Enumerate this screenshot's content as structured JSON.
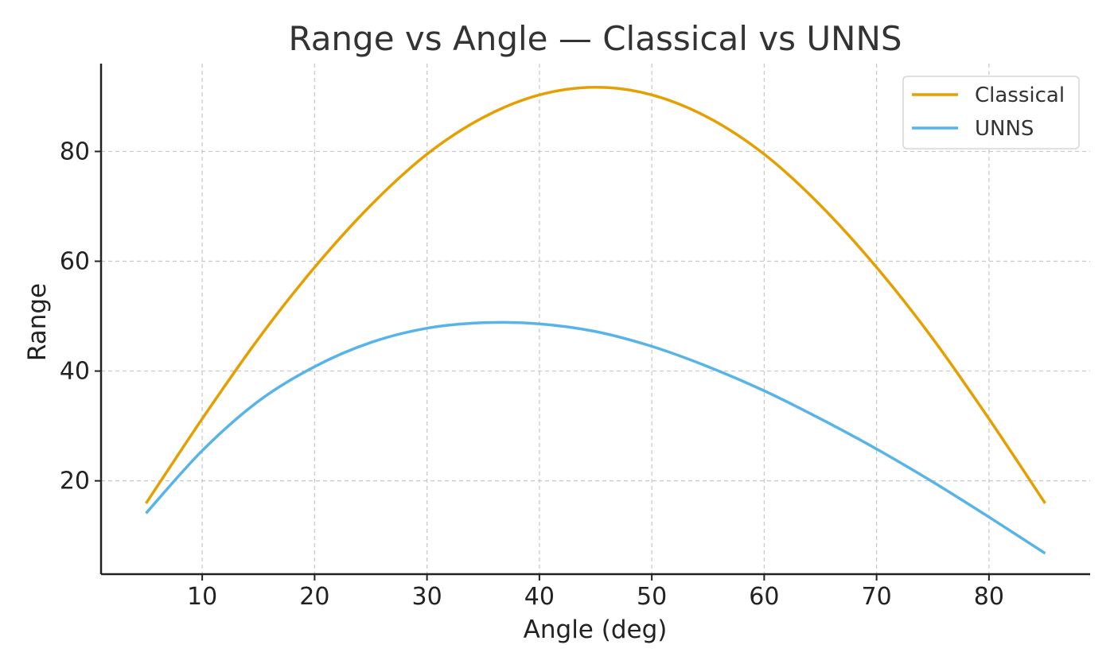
{
  "chart_data": {
    "type": "line",
    "title": "Range vs Angle — Classical vs UNNS",
    "xlabel": "Angle (deg)",
    "ylabel": "Range",
    "xlim": [
      1,
      89
    ],
    "ylim": [
      3,
      96
    ],
    "xticks": [
      10,
      20,
      30,
      40,
      50,
      60,
      70,
      80
    ],
    "yticks": [
      20,
      40,
      60,
      80
    ],
    "grid": true,
    "legend_position": "top-right",
    "series": [
      {
        "name": "Classical",
        "color": "#E69F00",
        "x": [
          5,
          10,
          15,
          20,
          25,
          30,
          35,
          40,
          45,
          50,
          55,
          60,
          65,
          70,
          75,
          80,
          85
        ],
        "y": [
          15.9,
          31.3,
          45.9,
          58.9,
          70.2,
          79.5,
          86.2,
          90.3,
          91.7,
          90.3,
          86.2,
          79.5,
          70.2,
          58.9,
          45.9,
          31.3,
          15.9
        ]
      },
      {
        "name": "UNNS",
        "color": "#56B4E9",
        "x": [
          5,
          10,
          15,
          20,
          25,
          30,
          35,
          40,
          45,
          50,
          55,
          60,
          65,
          70,
          75,
          80,
          85
        ],
        "y": [
          14.1,
          25.5,
          34.5,
          40.8,
          45.2,
          47.8,
          48.8,
          48.6,
          47.2,
          44.5,
          40.8,
          36.4,
          31.3,
          25.8,
          19.8,
          13.4,
          6.8
        ]
      }
    ]
  }
}
